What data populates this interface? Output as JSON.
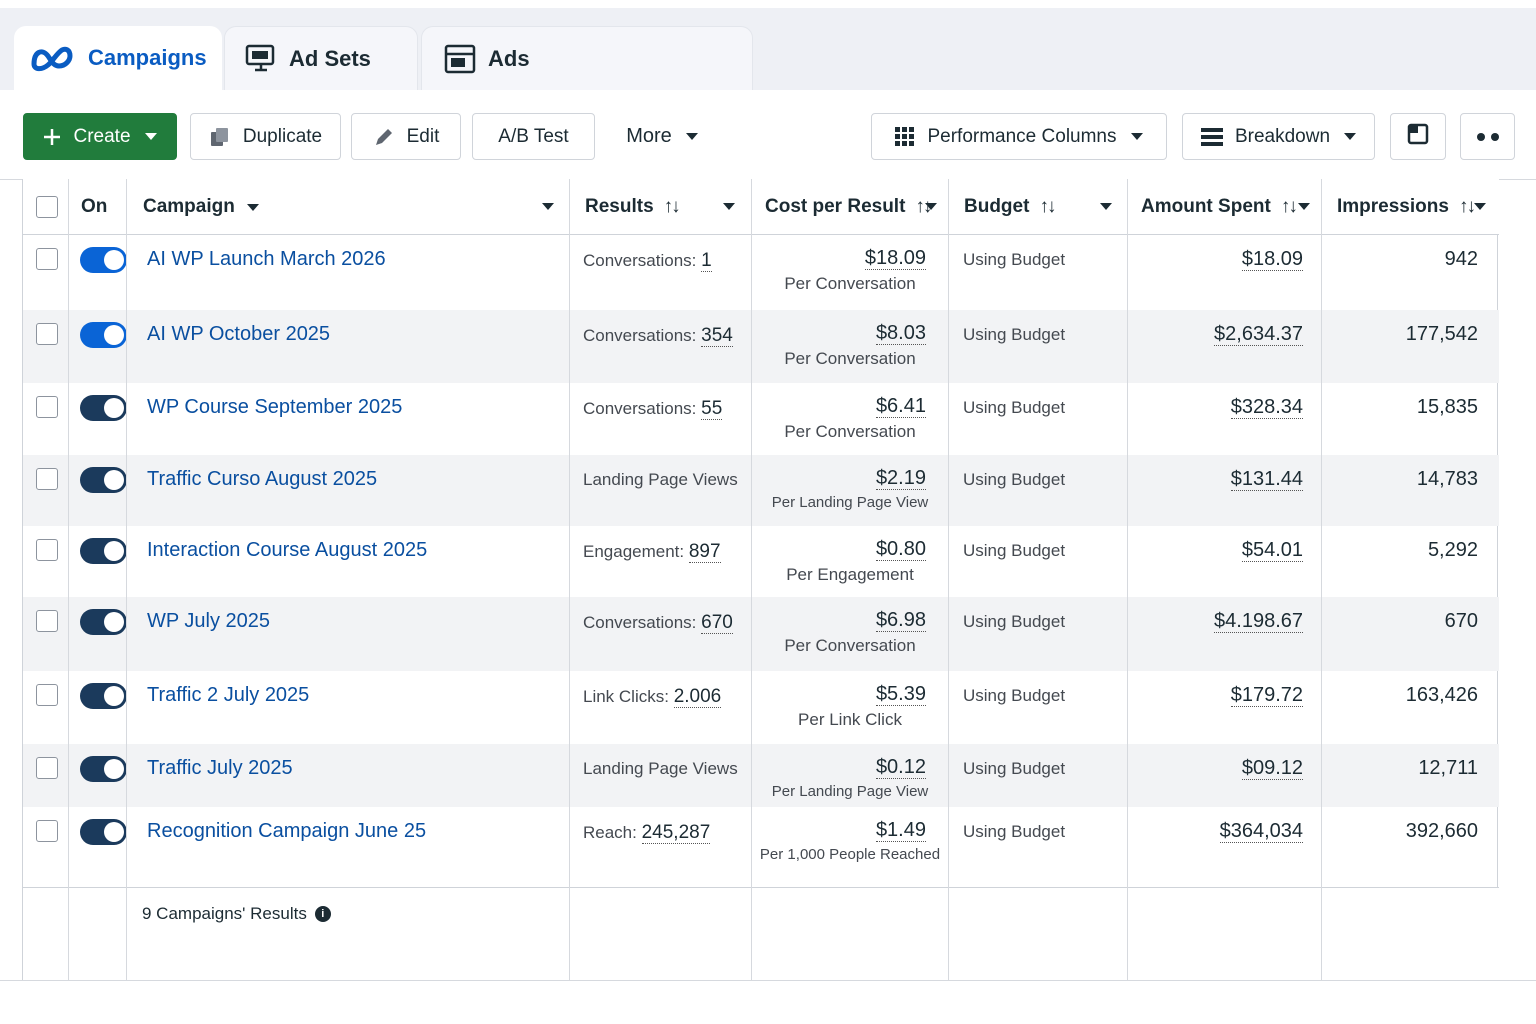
{
  "tabs": [
    {
      "label": "Campaigns",
      "icon": "meta-logo-icon",
      "active": true
    },
    {
      "label": "Ad Sets",
      "icon": "monitor-icon",
      "active": false
    },
    {
      "label": "Ads",
      "icon": "ad-layout-icon",
      "active": false
    }
  ],
  "toolbar": {
    "create_label": "Create",
    "duplicate_label": "Duplicate",
    "edit_label": "Edit",
    "abtest_label": "A/B Test",
    "more_label": "More",
    "columns_label": "Performance Columns",
    "breakdown_label": "Breakdown"
  },
  "colors": {
    "accent": "#0a5cc2",
    "create": "#217c3c",
    "toggle_on": "#0a64d6",
    "toggle_dark": "#1b3a5c",
    "link": "#0a4fa0"
  },
  "table": {
    "headers": {
      "on": "On",
      "campaign": "Campaign",
      "results": "Results",
      "cost": "Cost per Result",
      "budget": "Budget",
      "spent": "Amount Spent",
      "impressions": "Impressions",
      "sort_symbol": "↑↓"
    },
    "rows": [
      {
        "name": "AI WP  Launch March 2026",
        "res_label": "Conversations: ",
        "res_value": "1",
        "cost": "$18.09",
        "per": "Per Conversation",
        "budget": "Using Budget",
        "spent": "$18.09",
        "impressions": "942"
      },
      {
        "name": "AI WP October 2025",
        "res_label": "Conversations: ",
        "res_value": "354",
        "cost": "$8.03",
        "per": "Per Conversation",
        "budget": "Using Budget",
        "spent": "$2,634.37",
        "impressions": "177,542"
      },
      {
        "name": "WP Course September 2025",
        "res_label": "Conversations: ",
        "res_value": "55",
        "cost": "$6.41",
        "per": "Per Conversation",
        "budget": "Using Budget",
        "spent": "$328.34",
        "impressions": "15,835"
      },
      {
        "name": "Traffic Curso August 2025",
        "res_label": "Landing Page Views",
        "res_value": "",
        "cost": "$2.19",
        "per": "Per Landing Page View",
        "budget": "Using Budget",
        "spent": "$131.44",
        "impressions": "14,783"
      },
      {
        "name": "Interaction Course August 2025",
        "res_label": "Engagement: ",
        "res_value": "897",
        "cost": "$0.80",
        "per": "Per Engagement",
        "budget": "Using Budget",
        "spent": "$54.01",
        "impressions": "5,292"
      },
      {
        "name": "WP July 2025",
        "res_label": "Conversations: ",
        "res_value": "670",
        "cost": "$6.98",
        "per": "Per Conversation",
        "budget": "Using Budget",
        "spent": "$4.198.67",
        "impressions": "670"
      },
      {
        "name": "Traffic 2 July 2025",
        "res_label": "Link Clicks: ",
        "res_value": "2.006",
        "cost": "$5.39",
        "per": "Per Link Click",
        "budget": "Using Budget",
        "spent": "$179.72",
        "impressions": "163,426"
      },
      {
        "name": "Traffic July 2025",
        "res_label": "Landing Page Views",
        "res_value": "",
        "cost": "$0.12",
        "per": "Per Landing Page View",
        "budget": "Using Budget",
        "spent": "$09.12",
        "impressions": "12,711"
      },
      {
        "name": "Recognition Campaign June 25",
        "res_label": "Reach: ",
        "res_value": "245,287",
        "cost": "$1.49",
        "per": "Per 1,000 People Reached",
        "budget": "Using Budget",
        "spent": "$364,034",
        "impressions": "392,660"
      }
    ],
    "footer": "9 Campaigns' Results",
    "footer_info": "i"
  }
}
